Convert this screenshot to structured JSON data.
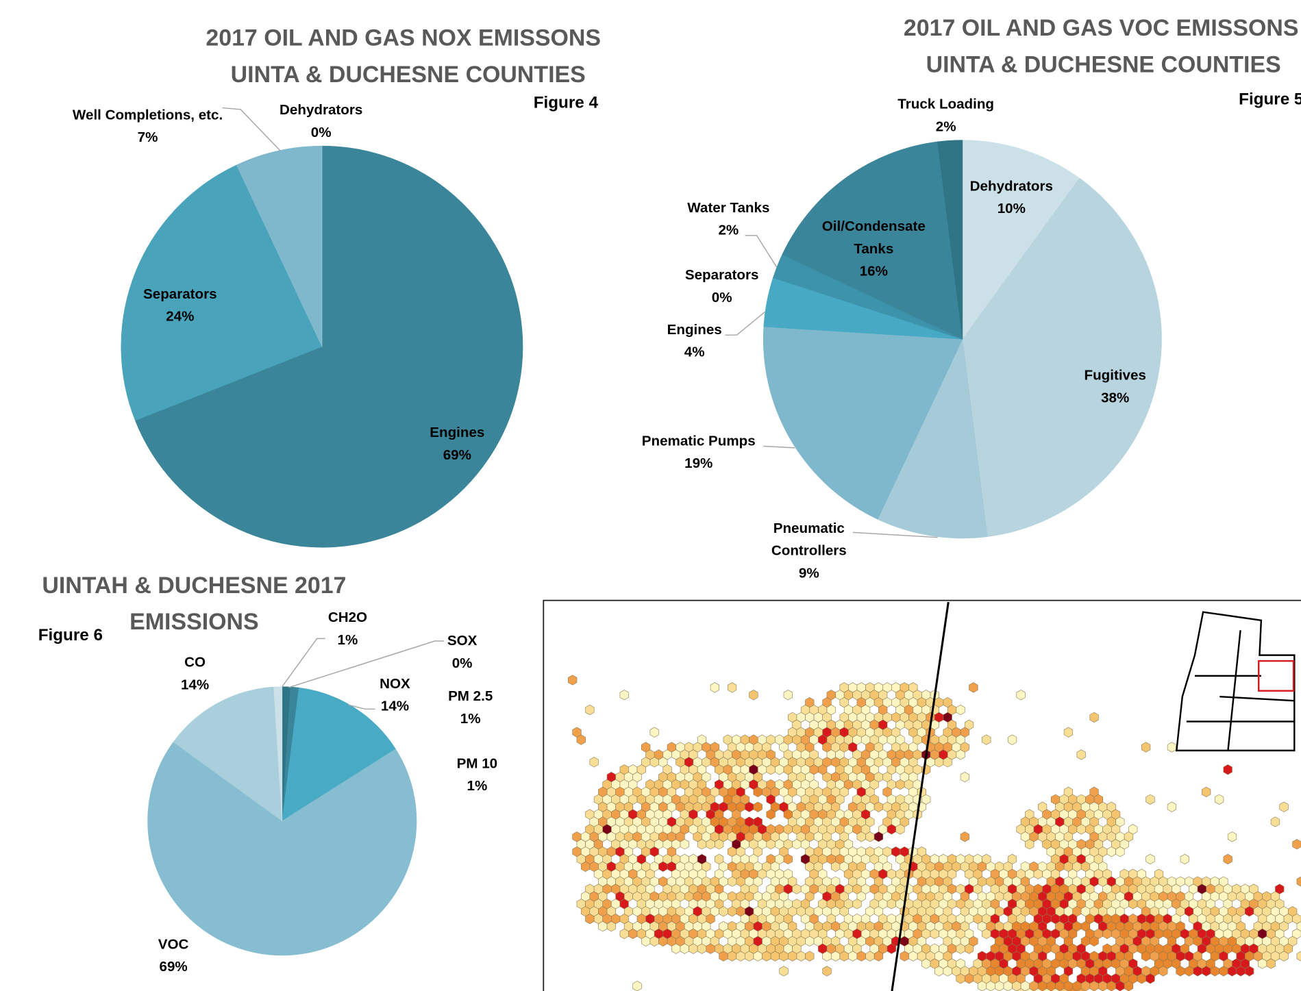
{
  "chart_data": [
    {
      "type": "pie",
      "title": "2017 OIL AND GAS NOX EMISSONS",
      "subtitle": "UINTA & DUCHESNE COUNTIES",
      "annotation": "Figure 4",
      "categories": [
        "Engines",
        "Separators",
        "Well Completions, etc.",
        "Dehydrators"
      ],
      "values": [
        69,
        24,
        7,
        0
      ],
      "value_labels": [
        "69%",
        "24%",
        "7%",
        "0%"
      ],
      "colors": [
        "#3a8599",
        "#48a3bb",
        "#7fb8cc",
        "#a9cfdc"
      ]
    },
    {
      "type": "pie",
      "title": "2017 OIL AND GAS VOC EMISSONS",
      "subtitle": "UINTA & DUCHESNE COUNTIES",
      "annotation": "Figure 5",
      "categories": [
        "Dehydrators",
        "Fugitives",
        "Pneumatic Controllers",
        "Pnematic Pumps",
        "Engines",
        "Separators",
        "Water Tanks",
        "Oil/Condensate Tanks",
        "Truck Loading"
      ],
      "values": [
        10,
        38,
        9,
        19,
        4,
        0,
        2,
        16,
        2
      ],
      "value_labels": [
        "10%",
        "38%",
        "9%",
        "19%",
        "4%",
        "0%",
        "2%",
        "16%",
        "2%"
      ],
      "colors": [
        "#cce0e8",
        "#b7d4df",
        "#a5cbd9",
        "#7fb8cd",
        "#47a9c4",
        "#3d94ad",
        "#3d93ab",
        "#3a8599",
        "#2f7585"
      ]
    },
    {
      "type": "pie",
      "title": "UINTAH & DUCHESNE 2017 EMISSIONS",
      "annotation": "Figure 6",
      "categories": [
        "SOX",
        "PM 2.5",
        "PM 10",
        "NOX",
        "VOC",
        "CO",
        "CH2O"
      ],
      "values": [
        0,
        1,
        1,
        14,
        69,
        14,
        1
      ],
      "value_labels": [
        "0%",
        "1%",
        "1%",
        "14%",
        "69%",
        "14%",
        "1%"
      ],
      "colors": [
        "#2a6e7f",
        "#2f7585",
        "#3a8599",
        "#48aac4",
        "#86bdd0",
        "#a9cfdc",
        "#cce0e8"
      ]
    }
  ]
}
